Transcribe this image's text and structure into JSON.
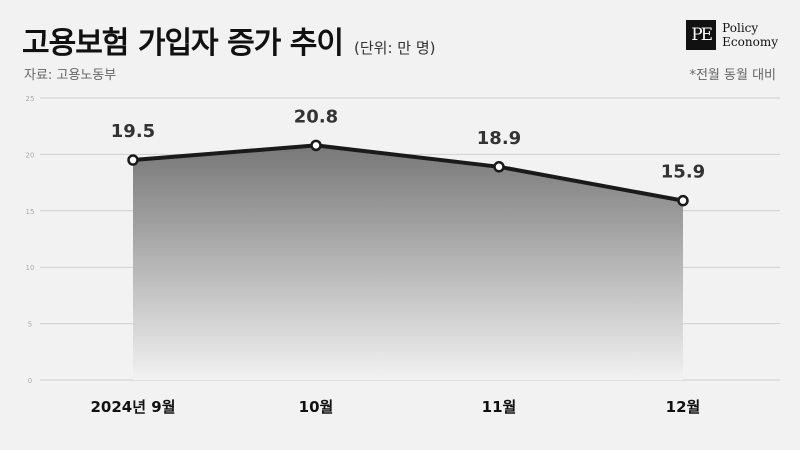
{
  "header": {
    "title": "고용보험 가입자 증가 추이",
    "unit": "(단위: 만 명)",
    "source": "자료: 고용노동부",
    "note": "*전월 동월 대비"
  },
  "logo": {
    "mark": "PE",
    "line1": "Policy",
    "line2": "Economy"
  },
  "chart_data": {
    "type": "area",
    "categories": [
      "2024년 9월",
      "10월",
      "11월",
      "12월"
    ],
    "values": [
      19.5,
      20.8,
      18.9,
      15.9
    ],
    "data_labels": [
      "19.5",
      "20.8",
      "18.9",
      "15.9"
    ],
    "ylim": [
      0,
      25
    ],
    "yticks": [
      0,
      5,
      10,
      15,
      20,
      25
    ],
    "ytick_labels": [
      "0",
      "5",
      "10",
      "15",
      "20",
      "25"
    ],
    "grid": true,
    "colors": {
      "line": "#1a1a1a",
      "fill_top": "#777777",
      "fill_bottom": "#f2f2f2",
      "grid": "#d0d0d0"
    }
  }
}
